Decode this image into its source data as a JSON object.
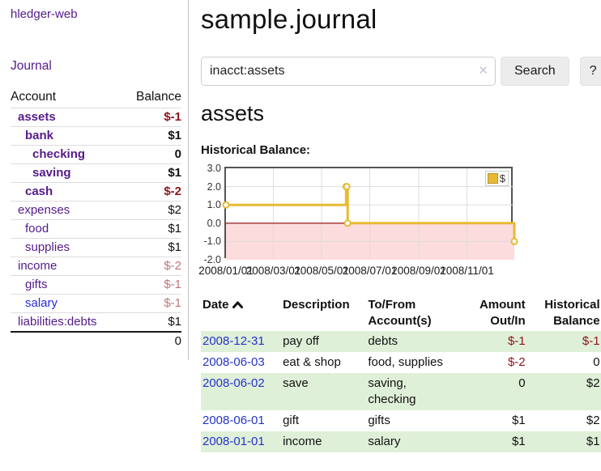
{
  "brand": "hledger-web",
  "nav": {
    "journal_label": "Journal"
  },
  "sidebar_table": {
    "headers": {
      "account": "Account",
      "balance": "Balance"
    },
    "rows": [
      {
        "account": "assets",
        "balance": "$-1",
        "indent": 1,
        "emph": true,
        "neg": "strong"
      },
      {
        "account": "bank",
        "balance": "$1",
        "indent": 2,
        "emph": true
      },
      {
        "account": "checking",
        "balance": "0",
        "indent": 3,
        "emph": true
      },
      {
        "account": "saving",
        "balance": "$1",
        "indent": 3,
        "emph": true
      },
      {
        "account": "cash",
        "balance": "$-2",
        "indent": 2,
        "emph": true,
        "neg": "strong"
      },
      {
        "account": "expenses",
        "balance": "$2",
        "indent": 1
      },
      {
        "account": "food",
        "balance": "$1",
        "indent": 2
      },
      {
        "account": "supplies",
        "balance": "$1",
        "indent": 2
      },
      {
        "account": "income",
        "balance": "$-2",
        "indent": 1,
        "neg": "dim"
      },
      {
        "account": "gifts",
        "balance": "$-1",
        "indent": 2,
        "neg": "dim"
      },
      {
        "account": "salary",
        "balance": "$-1",
        "indent": 2,
        "neg": "dim",
        "link": "blue"
      },
      {
        "account": "liabilities:debts",
        "balance": "$1",
        "indent": 1
      }
    ],
    "total": "0"
  },
  "header": {
    "title": "sample.journal"
  },
  "search": {
    "value": "inacct:assets",
    "clear_icon": "✕",
    "button_label": "Search",
    "help_label": "?"
  },
  "main": {
    "account_title": "assets",
    "chart_title": "Historical Balance:"
  },
  "chart_data": {
    "type": "line",
    "title": "Historical Balance:",
    "step": true,
    "xlim": [
      "2008-01-01",
      "2008-12-31"
    ],
    "ylim": [
      -2.0,
      3.0
    ],
    "yticks": [
      3.0,
      2.0,
      1.0,
      0.0,
      -1.0,
      -2.0
    ],
    "xticks": [
      {
        "date": "2008-01-01",
        "label": "2008/01/01"
      },
      {
        "date": "2008-03-01",
        "label": "2008/03/01"
      },
      {
        "date": "2008-05-01",
        "label": "2008/05/01"
      },
      {
        "date": "2008-07-01",
        "label": "2008/07/01"
      },
      {
        "date": "2008-09-01",
        "label": "2008/09/01"
      },
      {
        "date": "2008-11-01",
        "label": "2008/11/01"
      }
    ],
    "series": [
      {
        "name": "$",
        "color": "#e8ba33",
        "points": [
          [
            "2008-01-01",
            1
          ],
          [
            "2008-06-01",
            2
          ],
          [
            "2008-06-02",
            2
          ],
          [
            "2008-06-03",
            0
          ],
          [
            "2008-12-31",
            -1
          ]
        ]
      }
    ],
    "legend": {
      "label": "$",
      "position": "top-right"
    },
    "grid": true,
    "grid_color": "#ddd",
    "negative_fill": "#fcdcdc",
    "zero_line_color": "#8b0000"
  },
  "register_table": {
    "headers": {
      "date": "Date",
      "description": "Description",
      "accounts": "To/From Account(s)",
      "amount": "Amount Out/In",
      "balance": "Historical Balance"
    },
    "rows": [
      {
        "date": "2008-12-31",
        "description": "pay off",
        "accounts": "debts",
        "amount": "$-1",
        "amount_neg": true,
        "balance": "$-1",
        "balance_neg": true
      },
      {
        "date": "2008-06-03",
        "description": "eat & shop",
        "accounts": "food, supplies",
        "amount": "$-2",
        "amount_neg": true,
        "balance": "0",
        "balance_neg": false
      },
      {
        "date": "2008-06-02",
        "description": "save",
        "accounts": "saving, checking",
        "amount": "0",
        "amount_neg": false,
        "balance": "$2",
        "balance_neg": false
      },
      {
        "date": "2008-06-01",
        "description": "gift",
        "accounts": "gifts",
        "amount": "$1",
        "amount_neg": false,
        "balance": "$2",
        "balance_neg": false
      },
      {
        "date": "2008-01-01",
        "description": "income",
        "accounts": "salary",
        "amount": "$1",
        "amount_neg": false,
        "balance": "$1",
        "balance_neg": false
      }
    ]
  }
}
